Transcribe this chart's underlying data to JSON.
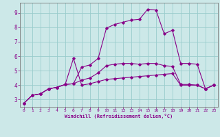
{
  "xlabel": "Windchill (Refroidissement éolien,°C)",
  "ylabel": "",
  "bg_color": "#cce8e8",
  "line_color": "#880088",
  "grid_color": "#99cccc",
  "xlim": [
    -0.5,
    23.5
  ],
  "ylim": [
    2.5,
    9.7
  ],
  "xticks": [
    0,
    1,
    2,
    3,
    4,
    5,
    6,
    7,
    8,
    9,
    10,
    11,
    12,
    13,
    14,
    15,
    16,
    17,
    18,
    19,
    20,
    21,
    22,
    23
  ],
  "yticks": [
    3,
    4,
    5,
    6,
    7,
    8,
    9
  ],
  "line1_x": [
    0,
    1,
    2,
    3,
    4,
    5,
    6,
    7,
    8,
    9,
    10,
    11,
    12,
    13,
    14,
    15,
    16,
    17,
    18,
    19,
    20,
    21,
    22,
    23
  ],
  "line1_y": [
    2.75,
    3.3,
    3.4,
    3.75,
    3.85,
    4.05,
    4.1,
    5.25,
    5.4,
    5.85,
    7.95,
    8.2,
    8.35,
    8.5,
    8.55,
    9.25,
    9.2,
    7.55,
    7.8,
    5.5,
    5.5,
    5.45,
    3.75,
    4.0
  ],
  "line2_x": [
    0,
    1,
    2,
    3,
    4,
    5,
    6,
    7,
    8,
    9,
    10,
    11,
    12,
    13,
    14,
    15,
    16,
    17,
    18,
    19,
    20,
    21,
    22,
    23
  ],
  "line2_y": [
    2.75,
    3.3,
    3.4,
    3.75,
    3.85,
    4.05,
    4.1,
    4.35,
    4.5,
    4.85,
    5.35,
    5.45,
    5.5,
    5.5,
    5.45,
    5.5,
    5.5,
    5.35,
    5.3,
    4.05,
    4.05,
    4.0,
    3.75,
    4.0
  ],
  "line3_x": [
    0,
    1,
    2,
    3,
    4,
    5,
    6,
    7,
    8,
    9,
    10,
    11,
    12,
    13,
    14,
    15,
    16,
    17,
    18,
    19,
    20,
    21,
    22,
    23
  ],
  "line3_y": [
    2.75,
    3.3,
    3.4,
    3.75,
    3.85,
    4.05,
    5.85,
    4.0,
    4.1,
    4.25,
    4.4,
    4.45,
    4.5,
    4.55,
    4.6,
    4.65,
    4.7,
    4.75,
    4.8,
    4.0,
    4.0,
    4.0,
    3.75,
    4.0
  ]
}
